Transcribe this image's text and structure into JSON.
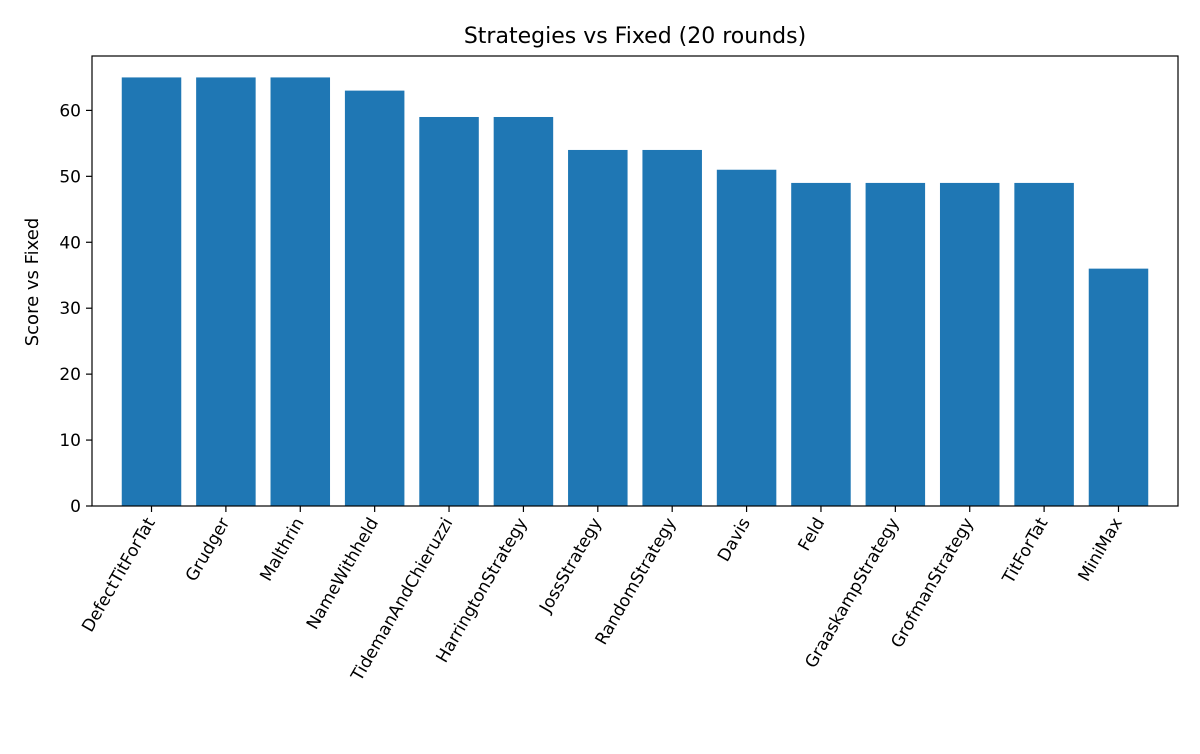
{
  "chart_data": {
    "type": "bar",
    "title": "Strategies vs Fixed (20 rounds)",
    "xlabel": "",
    "ylabel": "Score vs Fixed",
    "categories": [
      "DefectTitForTat",
      "Grudger",
      "Malthrin",
      "NameWithheld",
      "TidemanAndChieruzzi",
      "HarringtonStrategy",
      "JossStrategy",
      "RandomStrategy",
      "Davis",
      "Feld",
      "GraaskampStrategy",
      "GrofmanStrategy",
      "TitForTat",
      "MiniMax"
    ],
    "values": [
      65,
      65,
      65,
      63,
      59,
      59,
      54,
      54,
      51,
      49,
      49,
      49,
      49,
      36
    ],
    "ylim": [
      0,
      68.25
    ],
    "yticks": [
      0,
      10,
      20,
      30,
      40,
      50,
      60
    ],
    "bar_color": "#1f77b4",
    "grid": false,
    "legend": "none"
  }
}
